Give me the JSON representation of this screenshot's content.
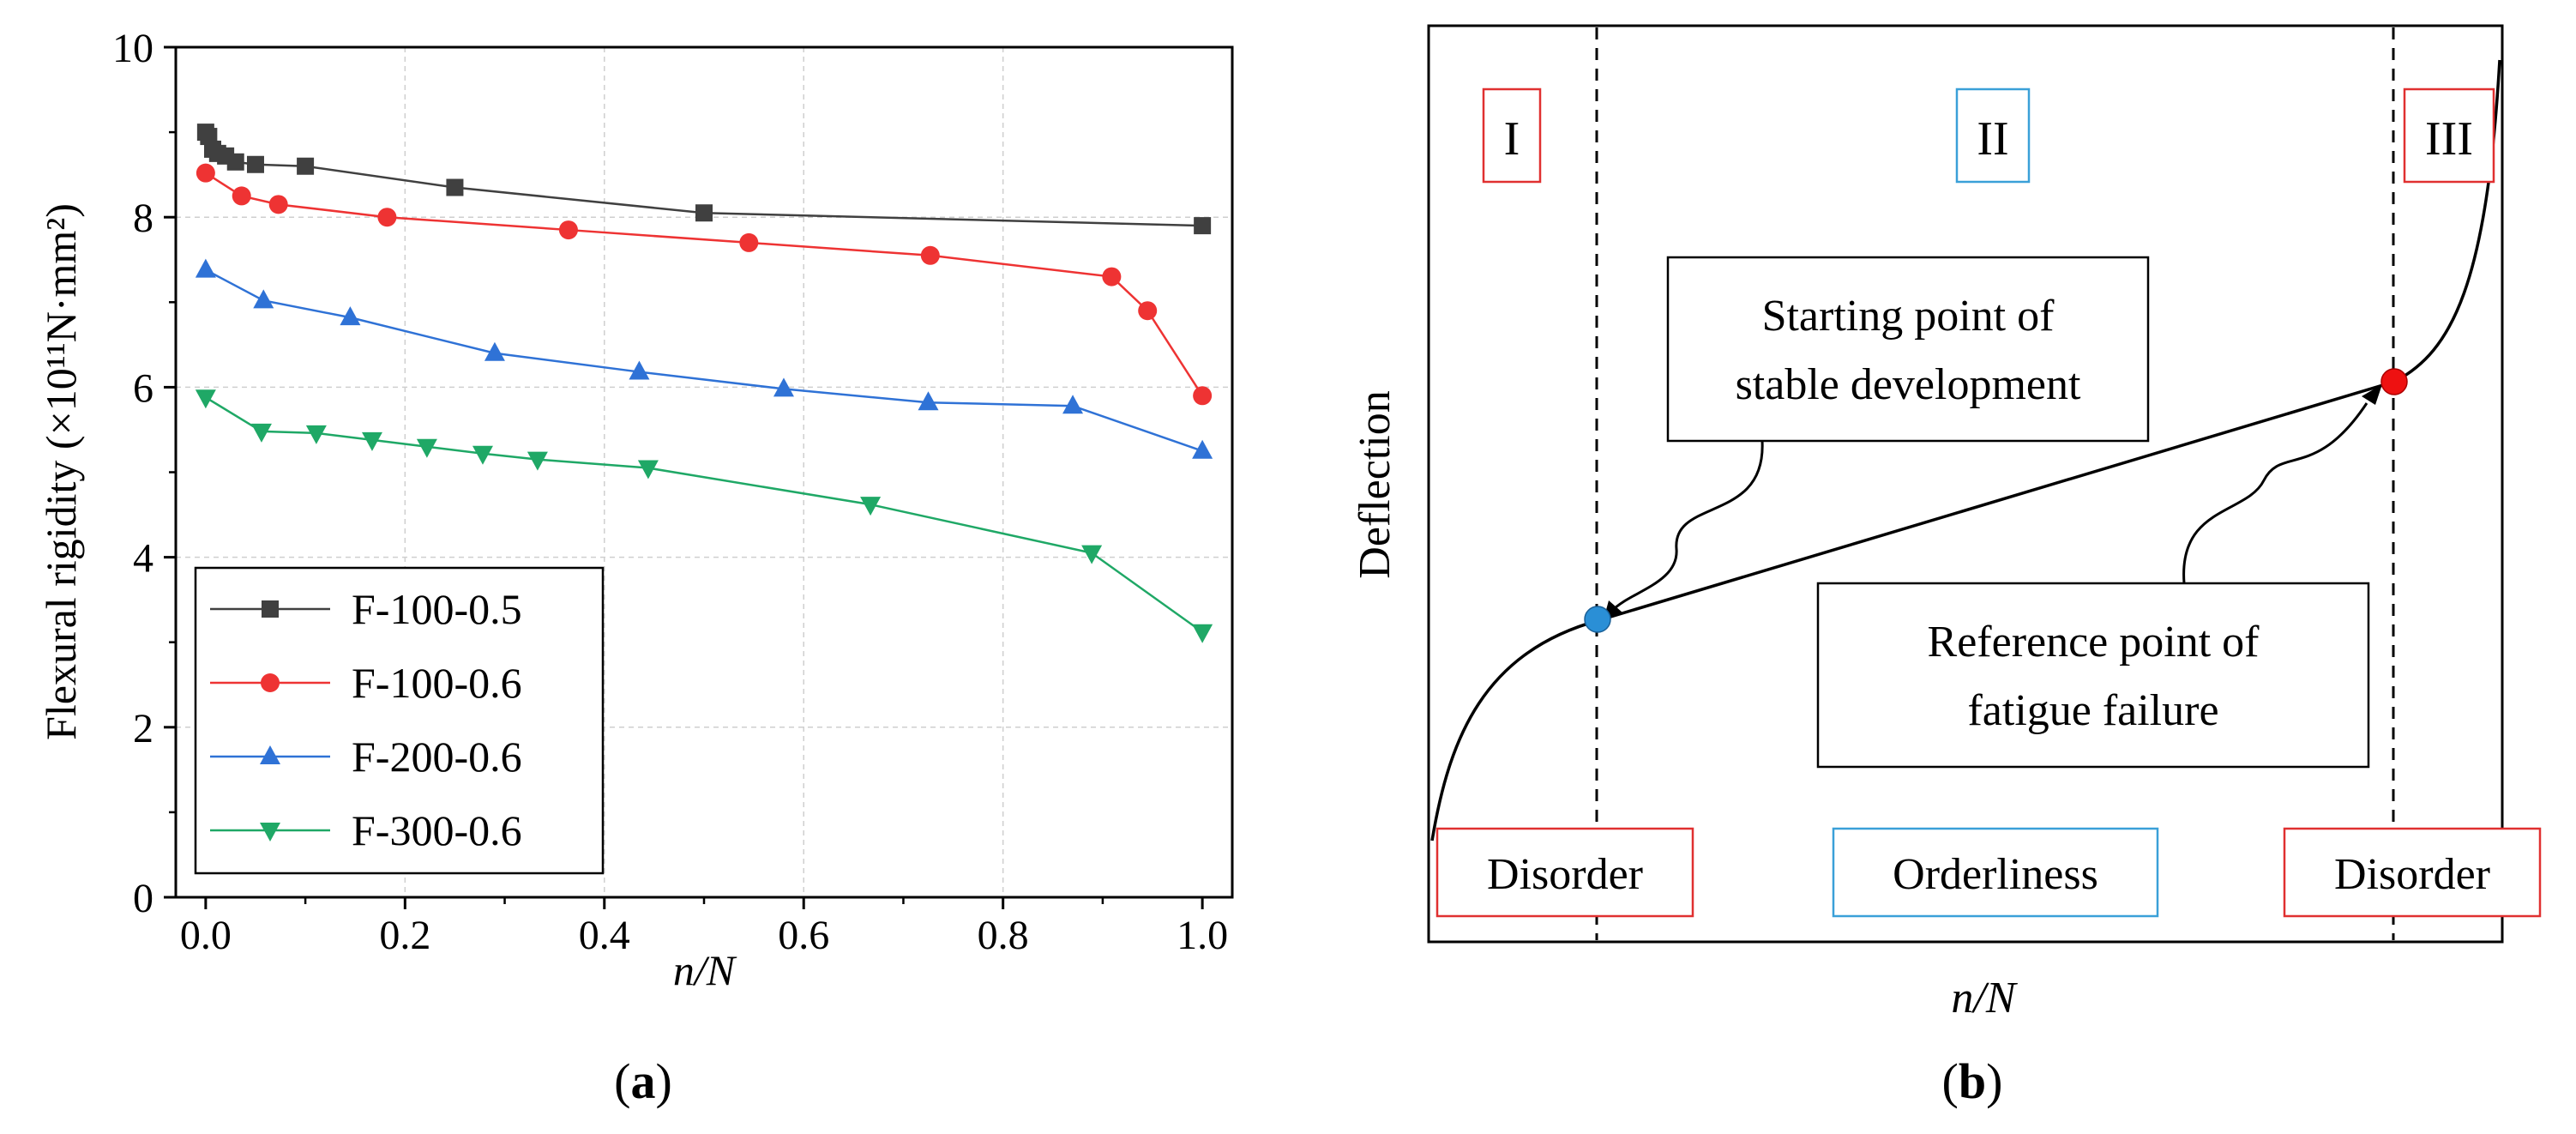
{
  "chart_data": [
    {
      "type": "line",
      "panel_label": "a",
      "xlabel": "n/N",
      "ylabel": "Flexural rigidity (×10¹¹N·mm²)",
      "xlim": [
        -0.03,
        1.03
      ],
      "ylim": [
        0,
        10
      ],
      "xticks": [
        0.0,
        0.2,
        0.4,
        0.6,
        0.8,
        1.0
      ],
      "xtick_labels": [
        "0.0",
        "0.2",
        "0.4",
        "0.6",
        "0.8",
        "1.0"
      ],
      "yticks": [
        0,
        2,
        4,
        6,
        8,
        10
      ],
      "ytick_labels": [
        "0",
        "2",
        "4",
        "6",
        "8",
        "10"
      ],
      "grid": true,
      "legend_position": "bottom-left",
      "series": [
        {
          "name": "F-100-0.5",
          "color": "#404040",
          "marker": "square",
          "x": [
            0.0,
            0.003,
            0.007,
            0.012,
            0.02,
            0.03,
            0.05,
            0.1,
            0.25,
            0.5,
            1.0
          ],
          "y": [
            9.0,
            8.95,
            8.8,
            8.75,
            8.72,
            8.65,
            8.62,
            8.6,
            8.35,
            8.05,
            7.9
          ]
        },
        {
          "name": "F-100-0.6",
          "color": "#ee3333",
          "marker": "circle",
          "x": [
            0.0,
            0.036,
            0.073,
            0.182,
            0.364,
            0.545,
            0.727,
            0.909,
            0.945,
            1.0
          ],
          "y": [
            8.52,
            8.25,
            8.15,
            8.0,
            7.85,
            7.7,
            7.55,
            7.3,
            6.9,
            5.9
          ]
        },
        {
          "name": "F-200-0.6",
          "color": "#2f72d6",
          "marker": "triangle-up",
          "x": [
            0.0,
            0.058,
            0.145,
            0.29,
            0.435,
            0.58,
            0.725,
            0.87,
            1.0
          ],
          "y": [
            7.38,
            7.02,
            6.82,
            6.4,
            6.18,
            5.98,
            5.82,
            5.78,
            5.25
          ]
        },
        {
          "name": "F-300-0.6",
          "color": "#1fa866",
          "marker": "triangle-down",
          "x": [
            0.0,
            0.056,
            0.111,
            0.167,
            0.222,
            0.278,
            0.333,
            0.444,
            0.667,
            0.889,
            1.0
          ],
          "y": [
            5.88,
            5.48,
            5.46,
            5.38,
            5.3,
            5.22,
            5.15,
            5.05,
            4.62,
            4.05,
            3.12
          ]
        }
      ]
    },
    {
      "type": "diagram",
      "panel_label": "b",
      "xlabel": "n/N",
      "ylabel": "Deflection",
      "stages": {
        "I": "I",
        "II": "II",
        "III": "III"
      },
      "regions": {
        "left": "Disorder",
        "middle": "Orderliness",
        "right": "Disorder"
      },
      "annotations": {
        "start_line1": "Starting point of",
        "start_line2": "stable development",
        "ref_line1": "Reference point of",
        "ref_line2": "fatigue failure"
      },
      "colors": {
        "start_point": "#2a8fd6",
        "reference_point": "#ee1111",
        "stage_border_disorder": "#e03030",
        "stage_border_order": "#3aa0d8"
      }
    }
  ]
}
